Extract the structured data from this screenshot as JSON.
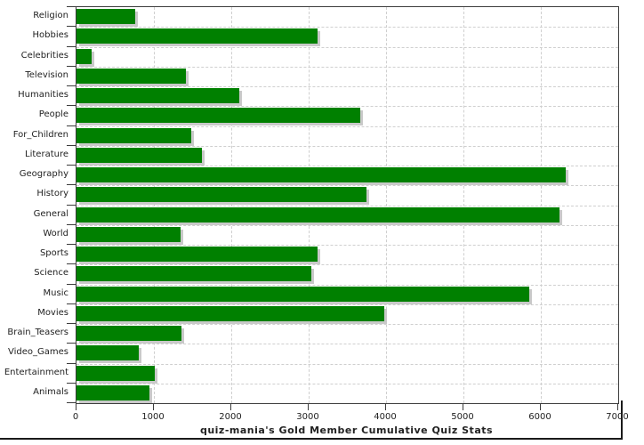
{
  "chart_data": {
    "type": "bar",
    "orientation": "horizontal",
    "title": "quiz-mania's Gold Member Cumulative Quiz Stats",
    "categories": [
      "Religion",
      "Hobbies",
      "Celebrities",
      "Television",
      "Humanities",
      "People",
      "For_Children",
      "Literature",
      "Geography",
      "History",
      "General",
      "World",
      "Sports",
      "Science",
      "Music",
      "Movies",
      "Brain_Teasers",
      "Video_Games",
      "Entertainment",
      "Animals"
    ],
    "values": [
      760,
      3120,
      200,
      1410,
      2100,
      3670,
      1480,
      1620,
      6320,
      3750,
      6240,
      1350,
      3110,
      3030,
      5850,
      3980,
      1360,
      800,
      1010,
      945
    ],
    "xlabel": "",
    "ylabel": "",
    "xlim": [
      0,
      7000
    ],
    "x_ticks": [
      0,
      1000,
      2000,
      3000,
      4000,
      5000,
      6000,
      7000
    ],
    "grid": true,
    "legend": "none",
    "bar_color": "#008000",
    "bar_shadow_color": "#c9c9c9",
    "grid_color": "#cfcfcf",
    "frame_color": "#3c3c3c",
    "text_color": "#222222"
  }
}
